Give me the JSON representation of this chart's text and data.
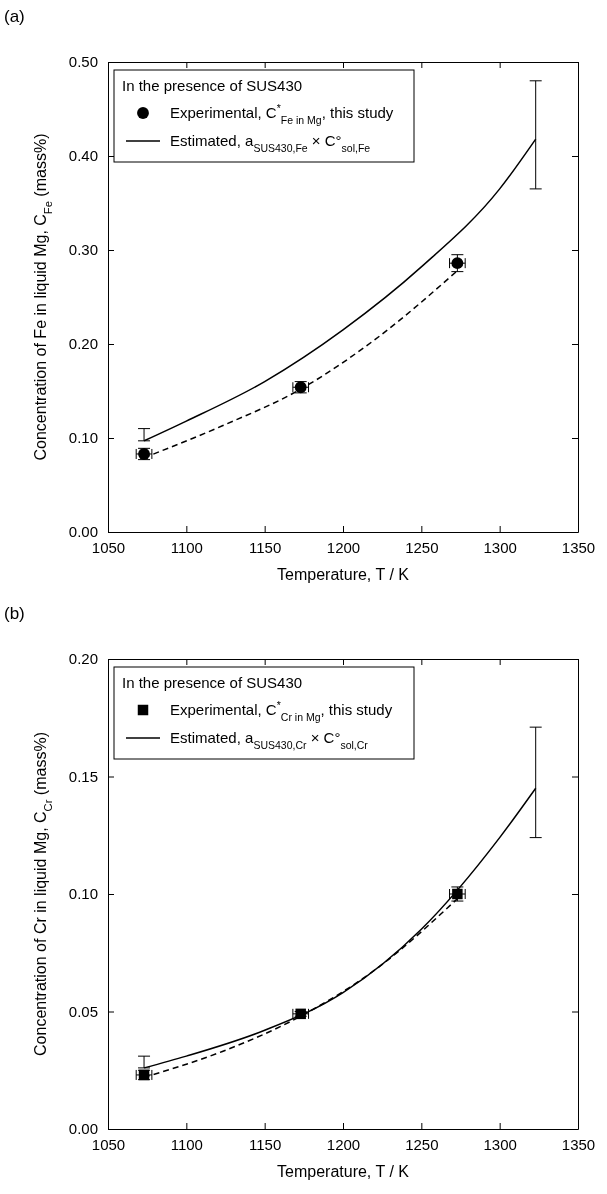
{
  "chart_data": [
    {
      "type": "scatter",
      "title": "(a)",
      "xlabel": "Temperature, T / K",
      "ylabel": "Concentration of Fe in liquid Mg, C$_{Fe}$ (mass%)",
      "legend_title": "In the presence of SUS430",
      "legend": "top left",
      "xlim": [
        1050,
        1350
      ],
      "xticks": [
        1050,
        1100,
        1150,
        1200,
        1250,
        1300,
        1350
      ],
      "ylim": [
        0,
        0.5
      ],
      "yticks": [
        {
          "value": 0,
          "label": "0.00"
        },
        {
          "value": 0.1,
          "label": "0.10"
        },
        {
          "value": 0.2,
          "label": "0.20"
        },
        {
          "value": 0.3,
          "label": "0.30"
        },
        {
          "value": 0.4,
          "label": "0.40"
        },
        {
          "value": 0.5,
          "label": "0.50"
        }
      ],
      "series": [
        {
          "name": "Experimental, C$^{*}$$_{Fe in Mg}$, this study",
          "color": "#000000",
          "marker": "circle",
          "x": [
            1073,
            1173,
            1273
          ],
          "values": [
            0.083,
            0.154,
            0.286
          ],
          "errors": [
            0.006,
            0.006,
            0.009
          ],
          "xerrors": [
            5,
            5,
            5
          ]
        },
        {
          "type": "line",
          "name": "Estimated, a$_{SUS430,Fe}$ × C°$_{sol,Fe}$",
          "color": "#000000",
          "line_style": "solid",
          "x": [
            1073,
            1100,
            1150,
            1200,
            1250,
            1300,
            1323
          ],
          "values": [
            0.097,
            0.118,
            0.16,
            0.215,
            0.282,
            0.365,
            0.418
          ],
          "errors": [
            [
              0.097,
              0.11
            ],
            null,
            null,
            null,
            null,
            null,
            [
              0.365,
              0.48
            ]
          ]
        },
        {
          "type": "line",
          "color": "#000000",
          "line_style": "dashed",
          "x": [
            1073,
            1123,
            1173,
            1223,
            1273
          ],
          "values": [
            0.079,
            0.113,
            0.152,
            0.208,
            0.278
          ]
        }
      ]
    },
    {
      "type": "scatter",
      "title": "(b)",
      "xlabel": "Temperature, T / K",
      "ylabel": "Concentration of Cr in liquid Mg, C$_{Cr}$ (mass%)",
      "legend_title": "In the presence of SUS430",
      "legend": "top left",
      "xlim": [
        1050,
        1350
      ],
      "xticks": [
        1050,
        1100,
        1150,
        1200,
        1250,
        1300,
        1350
      ],
      "ylim": [
        0,
        0.2
      ],
      "yticks": [
        {
          "value": 0,
          "label": "0.00"
        },
        {
          "value": 0.05,
          "label": "0.05"
        },
        {
          "value": 0.1,
          "label": "0.10"
        },
        {
          "value": 0.15,
          "label": "0.15"
        },
        {
          "value": 0.2,
          "label": "0.20"
        }
      ],
      "series": [
        {
          "name": "Experimental, C$^{*}$$_{Cr in Mg}$, this study",
          "color": "#000000",
          "marker": "square",
          "x": [
            1073,
            1173,
            1273
          ],
          "values": [
            0.023,
            0.049,
            0.1
          ],
          "errors": [
            0.002,
            0.001,
            0.003
          ],
          "xerrors": [
            5,
            5,
            5
          ]
        },
        {
          "type": "line",
          "name": "Estimated, a$_{SUS430,Cr}$ × C°$_{sol,Cr}$",
          "color": "#000000",
          "line_style": "solid",
          "x": [
            1073,
            1100,
            1150,
            1200,
            1250,
            1300,
            1323
          ],
          "values": [
            0.026,
            0.031,
            0.042,
            0.058,
            0.085,
            0.124,
            0.145
          ],
          "errors": [
            [
              0.026,
              0.031
            ],
            null,
            null,
            null,
            null,
            null,
            [
              0.124,
              0.171
            ]
          ]
        },
        {
          "type": "line",
          "color": "#000000",
          "line_style": "dashed",
          "x": [
            1073,
            1123,
            1173,
            1223,
            1273
          ],
          "values": [
            0.022,
            0.033,
            0.048,
            0.069,
            0.098
          ]
        }
      ]
    }
  ]
}
